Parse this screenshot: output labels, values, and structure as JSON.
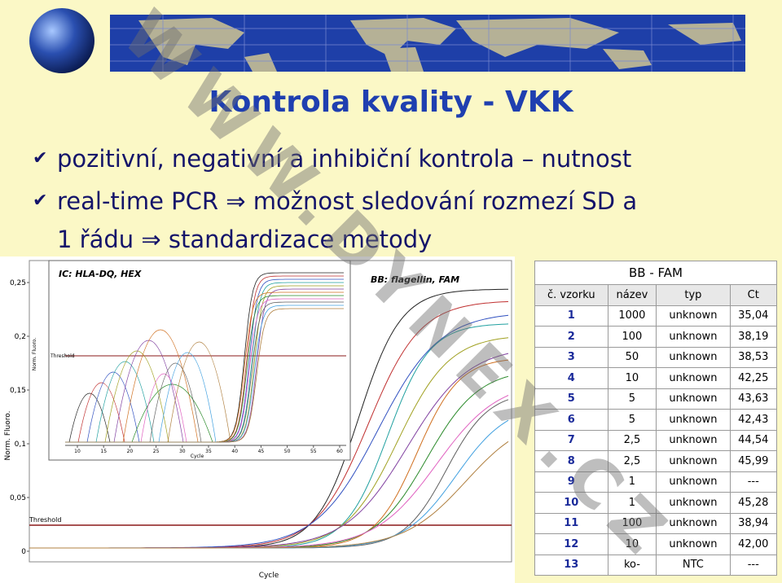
{
  "header": {
    "title": "Kontrola kvality - VKK"
  },
  "bullets": [
    {
      "lines": [
        "pozitivní, negativní a inhibiční kontrola – nutnost"
      ]
    },
    {
      "lines": [
        "real-time PCR ⇒ možnost sledování rozmezí SD a",
        "1 řádu ⇒ standardizace metody"
      ]
    }
  ],
  "watermark": "WWW.DYNEX.CZ",
  "figure": {
    "series_label": "BB: flagellin, FAM",
    "y_axis_label": "Norm. Fluoro.",
    "x_axis_label": "Cycle",
    "threshold_label": "Threshold",
    "yticks": [
      {
        "value": 0.25,
        "label": "0,25"
      },
      {
        "value": 0.2,
        "label": "0,2"
      },
      {
        "value": 0.15,
        "label": "0,15"
      },
      {
        "value": 0.1,
        "label": "0,1"
      },
      {
        "value": 0.05,
        "label": "0,05"
      },
      0
    ],
    "inset": {
      "series_label": "IC: HLA-DQ, HEX",
      "x_axis_label": "Cycle",
      "y_axis_label": "Norm. Fluoro.",
      "threshold_label": "Threshold",
      "xticks": [
        10,
        15,
        20,
        25,
        30,
        35,
        40,
        45,
        50,
        55,
        60
      ]
    }
  },
  "table": {
    "title": "BB - FAM",
    "columns": [
      "č. vzorku",
      "název",
      "typ",
      "Ct"
    ],
    "rows": [
      [
        "1",
        "1000",
        "unknown",
        "35,04"
      ],
      [
        "2",
        "100",
        "unknown",
        "38,19"
      ],
      [
        "3",
        "50",
        "unknown",
        "38,53"
      ],
      [
        "4",
        "10",
        "unknown",
        "42,25"
      ],
      [
        "5",
        "5",
        "unknown",
        "43,63"
      ],
      [
        "6",
        "5",
        "unknown",
        "42,43"
      ],
      [
        "7",
        "2,5",
        "unknown",
        "44,54"
      ],
      [
        "8",
        "2,5",
        "unknown",
        "45,99"
      ],
      [
        "9",
        "1",
        "unknown",
        "---"
      ],
      [
        "10",
        "1",
        "unknown",
        "45,28"
      ],
      [
        "11",
        "100",
        "unknown",
        "38,94"
      ],
      [
        "12",
        "10",
        "unknown",
        "42,00"
      ],
      [
        "13",
        "ko-",
        "NTC",
        "---"
      ]
    ]
  }
}
